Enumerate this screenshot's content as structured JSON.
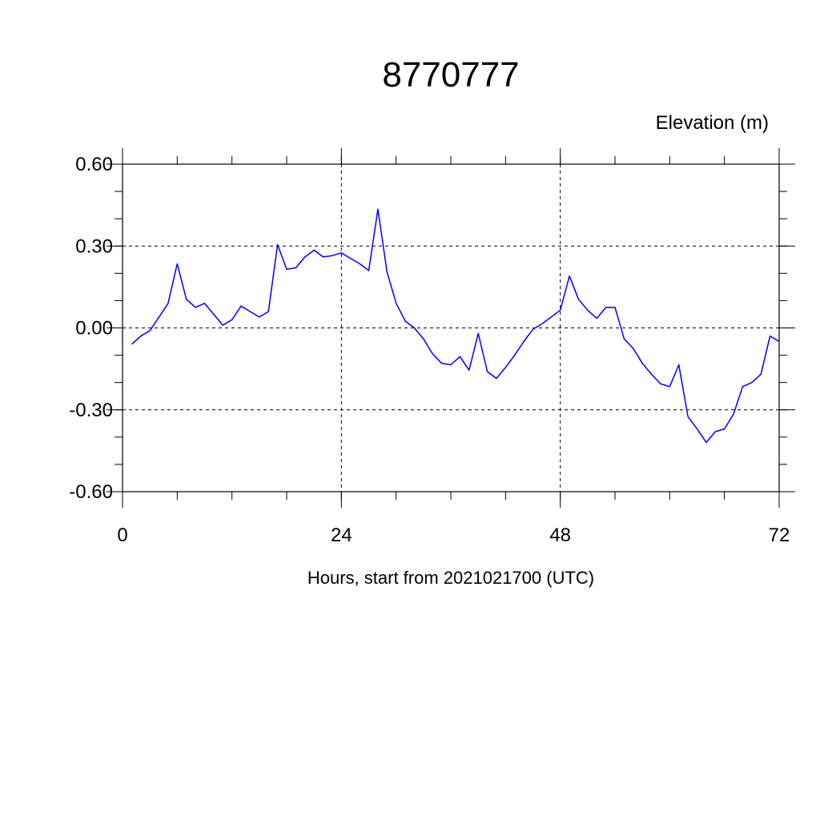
{
  "chart_data": {
    "type": "line",
    "title": "8770777",
    "ylabel": "Elevation (m)",
    "xlabel": "Hours, start from 2021021700 (UTC)",
    "xlim": [
      0,
      72
    ],
    "ylim": [
      -0.6,
      0.6
    ],
    "x_ticks": [
      0,
      24,
      48,
      72
    ],
    "x_tick_labels": [
      "0",
      "24",
      "48",
      "72"
    ],
    "x_minor_step": 6,
    "y_ticks": [
      0.6,
      0.3,
      0.0,
      -0.3,
      -0.6
    ],
    "y_tick_labels": [
      "0.60",
      "0.30",
      "0.00",
      "-0.30",
      "-0.60"
    ],
    "y_minor_step": 0.1,
    "grid": true,
    "series_color": "#0000ff",
    "series": [
      {
        "x": [
          1,
          2,
          3,
          4,
          5,
          6,
          7,
          8,
          9,
          10,
          11,
          12,
          13,
          14,
          15,
          16,
          17,
          18,
          19,
          20,
          21,
          22,
          23,
          24,
          25,
          26,
          27,
          28,
          29,
          30,
          31,
          32,
          33,
          34,
          35,
          36,
          37,
          38,
          39,
          40,
          41,
          42,
          43,
          44,
          45,
          46,
          47,
          48,
          49,
          50,
          51,
          52,
          53,
          54,
          55,
          56,
          57,
          58,
          59,
          60,
          61,
          62,
          63,
          64,
          65,
          66,
          67,
          68,
          69,
          70,
          71,
          72
        ],
        "values": [
          -0.06,
          -0.03,
          -0.01,
          0.04,
          0.09,
          0.235,
          0.105,
          0.075,
          0.09,
          0.05,
          0.01,
          0.03,
          0.08,
          0.06,
          0.04,
          0.06,
          0.305,
          0.215,
          0.22,
          0.26,
          0.285,
          0.26,
          0.265,
          0.275,
          0.255,
          0.235,
          0.21,
          0.435,
          0.205,
          0.09,
          0.025,
          0.0,
          -0.04,
          -0.095,
          -0.13,
          -0.135,
          -0.105,
          -0.155,
          -0.02,
          -0.16,
          -0.185,
          -0.145,
          -0.1,
          -0.05,
          -0.005,
          0.015,
          0.04,
          0.065,
          0.19,
          0.105,
          0.065,
          0.035,
          0.075,
          0.075,
          -0.04,
          -0.075,
          -0.13,
          -0.17,
          -0.205,
          -0.215,
          -0.135,
          -0.325,
          -0.37,
          -0.42,
          -0.38,
          -0.37,
          -0.315,
          -0.215,
          -0.2,
          -0.17,
          -0.03,
          -0.05
        ]
      }
    ]
  }
}
